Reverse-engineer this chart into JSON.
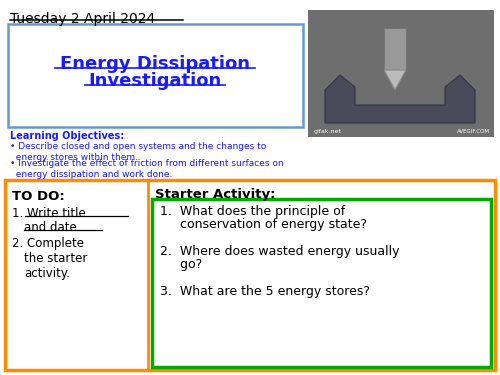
{
  "background_color": "#ffffff",
  "date_text": "Tuesday 2 April 2024",
  "lo_header": "Learning Objectives:",
  "lo_line1": "• Describe closed and open systems and the changes to\n  energy stores within them.",
  "lo_line2": "• Investigate the effect of friction from different surfaces on\n  energy dissipation and work done.",
  "todo_header": "TO DO:",
  "starter_header": "Starter Activity:",
  "q1a": "1.  What does the principle of",
  "q1b": "     conservation of energy state?",
  "q2a": "2.  Where does wasted energy usually",
  "q2b": "     go?",
  "q3": "3.  What are the 5 energy stores?",
  "date_color": "#000000",
  "title_color": "#1a1aff",
  "lo_color": "#1a1aff",
  "title_box_edge": "#6699cc",
  "bottom_box_edge": "#ff8c00",
  "starter_inner_edge": "#00aa00",
  "img_bg": "#6e6e6e",
  "img_metal": "#4a4a5a",
  "img_drill": "#999999"
}
